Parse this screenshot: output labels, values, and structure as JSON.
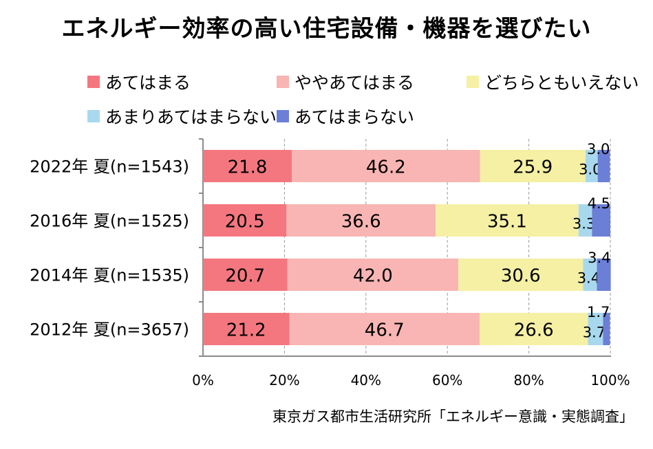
{
  "title": "エネルギー効率の高い住宅設備・機器を選びたい",
  "source": "東京ガス都市生活研究所「エネルギー意識・実態調査」",
  "colors": {
    "series": [
      "#f4777f",
      "#f8b5b3",
      "#f5f0a4",
      "#a8d8ee",
      "#6b7fd7"
    ]
  },
  "chart_data": {
    "type": "bar",
    "orientation": "horizontal-stacked-100",
    "categories": [
      "2022年 夏(n=1543)",
      "2016年 夏(n=1525)",
      "2014年 夏(n=1535)",
      "2012年 夏(n=3657)"
    ],
    "series": [
      {
        "name": "あてはまる",
        "values": [
          21.8,
          20.5,
          20.7,
          21.2
        ]
      },
      {
        "name": "ややあてはまる",
        "values": [
          46.2,
          36.6,
          42.0,
          46.7
        ]
      },
      {
        "name": "どちらともいえない",
        "values": [
          25.9,
          35.1,
          30.6,
          26.6
        ]
      },
      {
        "name": "あまりあてはまらない",
        "values": [
          3.0,
          3.3,
          3.4,
          3.7
        ]
      },
      {
        "name": "あてはまらない",
        "values": [
          3.0,
          4.5,
          3.4,
          1.7
        ]
      }
    ],
    "labels": [
      [
        "21.8",
        "46.2",
        "25.9",
        "3.0",
        "3.0"
      ],
      [
        "20.5",
        "36.6",
        "35.1",
        "3.3",
        "4.5"
      ],
      [
        "20.7",
        "42.0",
        "30.6",
        "3.4",
        "3.4"
      ],
      [
        "21.2",
        "46.7",
        "26.6",
        "3.7",
        "1.7"
      ]
    ],
    "xticks": [
      "0%",
      "20%",
      "40%",
      "60%",
      "80%",
      "100%"
    ],
    "xlim": [
      0,
      100
    ],
    "grid": true,
    "legend": "top"
  }
}
